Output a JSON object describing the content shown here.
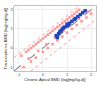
{
  "chart_data": {
    "type": "scatter",
    "title": "",
    "xlabel": "Chronic Apical BMD (log[mg/kg-d])",
    "ylabel": "Transcriptomic BMD (log[mg/kg-d])",
    "xlim": [
      -1.2,
      2.2
    ],
    "ylim": [
      -1.2,
      2.2
    ],
    "xticks": [
      -1,
      0,
      1,
      2
    ],
    "yticks": [
      -1,
      0,
      1,
      2
    ],
    "grid": true,
    "series": [
      {
        "type": "line",
        "color": "#444444",
        "line_style": "dash",
        "x": [
          -1.2,
          2.2
        ],
        "values": [
          -1.2,
          2.2
        ]
      },
      {
        "type": "line",
        "color": "#ff8888",
        "line_style": "dot",
        "x": [
          -1.2,
          1.5
        ],
        "values": [
          -0.5,
          2.2
        ]
      },
      {
        "type": "line",
        "color": "#ff8888",
        "line_style": "dot",
        "x": [
          -0.5,
          2.2
        ],
        "values": [
          -1.2,
          1.5
        ]
      },
      {
        "type": "scatter",
        "color": "#ff9999",
        "marker": "square",
        "x": [
          -0.9,
          -0.7,
          -0.6,
          -0.5,
          -0.4,
          -0.3,
          -0.2,
          -0.1,
          0.0,
          0.1,
          0.2,
          0.3,
          0.4,
          0.5,
          0.6,
          0.7,
          0.8,
          0.9,
          1.0,
          1.1,
          1.2,
          1.3,
          1.4,
          1.5,
          -0.8,
          -0.5,
          -0.3,
          0.0,
          0.2,
          0.4,
          0.6,
          0.8,
          1.0,
          1.2,
          1.4,
          1.6,
          1.8,
          2.0,
          -0.6,
          -0.2,
          0.15,
          0.5,
          0.85,
          1.15,
          1.5,
          1.85
        ],
        "values": [
          -0.4,
          -0.2,
          -0.1,
          0.0,
          0.1,
          0.2,
          0.3,
          0.4,
          0.5,
          0.6,
          0.7,
          0.8,
          0.9,
          1.0,
          1.1,
          1.2,
          1.3,
          1.4,
          1.5,
          1.6,
          1.7,
          1.8,
          1.9,
          2.0,
          -1.0,
          -0.7,
          -0.5,
          -0.2,
          0.0,
          0.2,
          0.4,
          0.6,
          0.8,
          1.0,
          1.2,
          1.4,
          1.6,
          1.8,
          -0.55,
          -0.15,
          0.2,
          0.55,
          0.9,
          1.2,
          1.55,
          1.9
        ]
      },
      {
        "type": "scatter",
        "color": "#2244bb",
        "marker": "square",
        "x": [
          0.55,
          0.65,
          0.7,
          0.75,
          0.85,
          0.9,
          1.0,
          1.05,
          1.1,
          1.2,
          1.3,
          1.35,
          1.45,
          1.55,
          1.65,
          1.75,
          0.8,
          1.0,
          0.6
        ],
        "values": [
          0.65,
          0.75,
          0.85,
          0.9,
          1.05,
          1.1,
          1.15,
          1.2,
          1.3,
          1.4,
          1.5,
          1.55,
          1.65,
          1.75,
          1.85,
          1.95,
          1.0,
          1.25,
          0.55
        ]
      }
    ]
  }
}
